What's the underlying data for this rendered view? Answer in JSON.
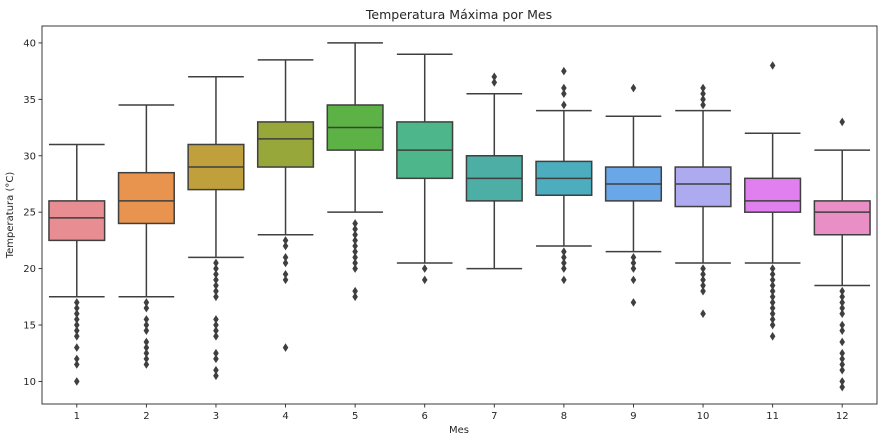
{
  "chart_data": {
    "type": "box",
    "title": "Temperatura Máxima por Mes",
    "xlabel": "Mes",
    "ylabel": "Temperatura (°C)",
    "ylim": [
      8,
      41.5
    ],
    "yticks": [
      10,
      15,
      20,
      25,
      30,
      35,
      40
    ],
    "categories": [
      "1",
      "2",
      "3",
      "4",
      "5",
      "6",
      "7",
      "8",
      "9",
      "10",
      "11",
      "12"
    ],
    "colors": [
      "#e88e93",
      "#e8934e",
      "#c0a03c",
      "#98a73a",
      "#5cb244",
      "#4db68a",
      "#4caea4",
      "#4cadbf",
      "#6aa7e8",
      "#aeaaf0",
      "#e080ee",
      "#e98fc6"
    ],
    "boxes": [
      {
        "whisker_low": 17.5,
        "q1": 22.5,
        "median": 24.5,
        "q3": 26.0,
        "whisker_high": 31.0,
        "outliers": [
          17.0,
          16.5,
          16.0,
          15.5,
          15.0,
          14.5,
          14.0,
          13.0,
          12.0,
          11.5,
          10.0
        ]
      },
      {
        "whisker_low": 17.5,
        "q1": 24.0,
        "median": 26.0,
        "q3": 28.5,
        "whisker_high": 34.5,
        "outliers": [
          17.0,
          16.5,
          15.5,
          15.0,
          14.5,
          13.5,
          13.0,
          12.5,
          12.0,
          11.5
        ]
      },
      {
        "whisker_low": 21.0,
        "q1": 27.0,
        "median": 29.0,
        "q3": 31.0,
        "whisker_high": 37.0,
        "outliers": [
          20.5,
          20.0,
          19.5,
          19.0,
          18.5,
          18.0,
          17.5,
          15.5,
          15.0,
          14.5,
          14.0,
          12.5,
          12.0,
          11.0,
          10.5
        ]
      },
      {
        "whisker_low": 23.0,
        "q1": 29.0,
        "median": 31.5,
        "q3": 33.0,
        "whisker_high": 38.5,
        "outliers": [
          22.5,
          22.0,
          21.0,
          20.5,
          19.5,
          19.0,
          13.0
        ]
      },
      {
        "whisker_low": 25.0,
        "q1": 30.5,
        "median": 32.5,
        "q3": 34.5,
        "whisker_high": 40.0,
        "outliers": [
          24.0,
          23.5,
          23.0,
          22.5,
          22.0,
          21.5,
          21.0,
          20.5,
          20.0,
          18.0,
          17.5
        ]
      },
      {
        "whisker_low": 20.5,
        "q1": 28.0,
        "median": 30.5,
        "q3": 33.0,
        "whisker_high": 39.0,
        "outliers": [
          20.0,
          19.0
        ]
      },
      {
        "whisker_low": 20.0,
        "q1": 26.0,
        "median": 28.0,
        "q3": 30.0,
        "whisker_high": 35.5,
        "outliers": [
          36.5,
          37.0
        ]
      },
      {
        "whisker_low": 22.0,
        "q1": 26.5,
        "median": 28.0,
        "q3": 29.5,
        "whisker_high": 34.0,
        "outliers": [
          34.5,
          35.5,
          36.0,
          37.5,
          21.5,
          21.0,
          20.5,
          20.0,
          19.0
        ]
      },
      {
        "whisker_low": 21.5,
        "q1": 26.0,
        "median": 27.5,
        "q3": 29.0,
        "whisker_high": 33.5,
        "outliers": [
          36.0,
          21.0,
          20.5,
          20.0,
          19.0,
          17.0
        ]
      },
      {
        "whisker_low": 20.5,
        "q1": 25.5,
        "median": 27.5,
        "q3": 29.0,
        "whisker_high": 34.0,
        "outliers": [
          34.5,
          35.0,
          35.5,
          36.0,
          20.0,
          19.5,
          19.0,
          18.5,
          18.0,
          16.0
        ]
      },
      {
        "whisker_low": 20.5,
        "q1": 25.0,
        "median": 26.0,
        "q3": 28.0,
        "whisker_high": 32.0,
        "outliers": [
          38.0,
          20.0,
          19.5,
          19.0,
          18.5,
          18.0,
          17.5,
          17.0,
          16.5,
          16.0,
          15.5,
          15.0,
          14.0
        ]
      },
      {
        "whisker_low": 18.5,
        "q1": 23.0,
        "median": 25.0,
        "q3": 26.0,
        "whisker_high": 30.5,
        "outliers": [
          33.0,
          18.0,
          17.5,
          17.0,
          16.5,
          16.0,
          15.0,
          14.5,
          13.5,
          12.5,
          12.0,
          11.5,
          11.0,
          10.0,
          9.5
        ]
      }
    ],
    "grid": false,
    "legend": "none"
  }
}
